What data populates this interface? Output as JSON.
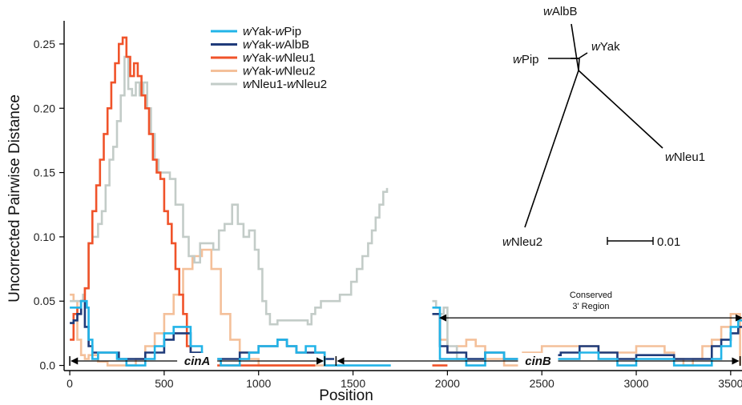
{
  "chart_data": {
    "type": "line",
    "xlabel": "Position",
    "ylabel": "Uncorrected Pairwise Distance",
    "xlim": [
      -30,
      3560
    ],
    "ylim": [
      -0.004,
      0.268
    ],
    "xticks": [
      0,
      500,
      1000,
      1500,
      2000,
      2500,
      3000,
      3500
    ],
    "xtick_labels": [
      "0",
      "500",
      "1000",
      "1500",
      "2000",
      "2500",
      "3000",
      "3500"
    ],
    "yticks": [
      0,
      0.05,
      0.1,
      0.15,
      0.2,
      0.25
    ],
    "ytick_labels": [
      "0.0",
      "0.05",
      "0.10",
      "0.15",
      "0.20",
      "0.25"
    ],
    "legend_position": "top-left",
    "series": [
      {
        "name": "wYak-wNleu2",
        "prefix": "w",
        "mid": "Yak-",
        "suffix": "Nleu2",
        "color": "#f4c09a",
        "points": [
          [
            0,
            0.055
          ],
          [
            20,
            0.05
          ],
          [
            40,
            0.02
          ],
          [
            60,
            0.008
          ],
          [
            80,
            0.005
          ],
          [
            100,
            0.008
          ],
          [
            150,
            0.003
          ],
          [
            200,
            0.0
          ],
          [
            300,
            0.0
          ],
          [
            350,
            0.005
          ],
          [
            400,
            0.015
          ],
          [
            450,
            0.025
          ],
          [
            500,
            0.04
          ],
          [
            550,
            0.055
          ],
          [
            600,
            0.075
          ],
          [
            650,
            0.085
          ],
          [
            700,
            0.09
          ],
          [
            750,
            0.075
          ],
          [
            800,
            0.04
          ],
          [
            850,
            0.02
          ],
          [
            900,
            0.01
          ],
          [
            950,
            0.005
          ],
          [
            1000,
            0.0
          ],
          [
            1100,
            0.0
          ],
          [
            1200,
            0.0
          ],
          [
            1300,
            0.0
          ],
          [
            1420,
            0.0
          ],
          [
            null,
            null
          ],
          [
            1920,
            0.04
          ],
          [
            1960,
            0.02
          ],
          [
            2000,
            0.01
          ],
          [
            2050,
            0.015
          ],
          [
            2100,
            0.02
          ],
          [
            2150,
            0.015
          ],
          [
            2200,
            0.005
          ],
          [
            2300,
            0.0
          ],
          [
            2400,
            0.01
          ],
          [
            2500,
            0.015
          ],
          [
            2600,
            0.015
          ],
          [
            2700,
            0.015
          ],
          [
            2800,
            0.01
          ],
          [
            2900,
            0.01
          ],
          [
            3000,
            0.015
          ],
          [
            3100,
            0.015
          ],
          [
            3150,
            0.01
          ],
          [
            3200,
            0.005
          ],
          [
            3250,
            0.0
          ],
          [
            3300,
            0.005
          ],
          [
            3350,
            0.015
          ],
          [
            3400,
            0.02
          ],
          [
            3450,
            0.03
          ],
          [
            3500,
            0.04
          ],
          [
            3540,
            0.04
          ],
          [
            3550,
            0.0
          ]
        ]
      },
      {
        "name": "wNleu1-wNleu2",
        "prefix": "w",
        "mid": "Nleu1-",
        "suffix": "Nleu2",
        "color": "#c3ccc8",
        "points": [
          [
            0,
            0.05
          ],
          [
            40,
            0.05
          ],
          [
            70,
            0.055
          ],
          [
            80,
            0.06
          ],
          [
            100,
            0.095
          ],
          [
            120,
            0.1
          ],
          [
            150,
            0.11
          ],
          [
            170,
            0.12
          ],
          [
            190,
            0.14
          ],
          [
            210,
            0.16
          ],
          [
            230,
            0.17
          ],
          [
            250,
            0.19
          ],
          [
            270,
            0.21
          ],
          [
            290,
            0.24
          ],
          [
            310,
            0.215
          ],
          [
            330,
            0.21
          ],
          [
            350,
            0.22
          ],
          [
            370,
            0.21
          ],
          [
            390,
            0.22
          ],
          [
            410,
            0.2
          ],
          [
            430,
            0.18
          ],
          [
            450,
            0.16
          ],
          [
            470,
            0.15
          ],
          [
            500,
            0.15
          ],
          [
            530,
            0.145
          ],
          [
            560,
            0.125
          ],
          [
            600,
            0.1
          ],
          [
            630,
            0.085
          ],
          [
            660,
            0.08
          ],
          [
            690,
            0.095
          ],
          [
            720,
            0.095
          ],
          [
            760,
            0.09
          ],
          [
            790,
            0.105
          ],
          [
            820,
            0.11
          ],
          [
            860,
            0.125
          ],
          [
            890,
            0.11
          ],
          [
            920,
            0.1
          ],
          [
            950,
            0.105
          ],
          [
            980,
            0.09
          ],
          [
            1000,
            0.075
          ],
          [
            1020,
            0.05
          ],
          [
            1040,
            0.04
          ],
          [
            1060,
            0.032
          ],
          [
            1100,
            0.035
          ],
          [
            1200,
            0.035
          ],
          [
            1260,
            0.032
          ],
          [
            1280,
            0.04
          ],
          [
            1300,
            0.045
          ],
          [
            1330,
            0.05
          ],
          [
            1360,
            0.05
          ],
          [
            1400,
            0.05
          ],
          [
            1430,
            0.055
          ],
          [
            1460,
            0.055
          ],
          [
            1490,
            0.065
          ],
          [
            1520,
            0.075
          ],
          [
            1550,
            0.085
          ],
          [
            1580,
            0.095
          ],
          [
            1600,
            0.105
          ],
          [
            1620,
            0.115
          ],
          [
            1640,
            0.125
          ],
          [
            1660,
            0.135
          ],
          [
            1680,
            0.138
          ],
          [
            null,
            null
          ],
          [
            1920,
            0.05
          ],
          [
            1940,
            0.045
          ],
          [
            1960,
            0.04
          ],
          [
            1980,
            0.045
          ],
          [
            2000,
            0.015
          ],
          [
            2050,
            0.005
          ],
          [
            2100,
            0.0
          ]
        ]
      },
      {
        "name": "wYak-wNleu1",
        "prefix": "w",
        "mid": "Yak-",
        "suffix": "Nleu1",
        "color": "#f0532a",
        "points": [
          [
            0,
            0.02
          ],
          [
            20,
            0.04
          ],
          [
            40,
            0.045
          ],
          [
            60,
            0.05
          ],
          [
            80,
            0.06
          ],
          [
            100,
            0.095
          ],
          [
            120,
            0.12
          ],
          [
            140,
            0.14
          ],
          [
            160,
            0.16
          ],
          [
            180,
            0.18
          ],
          [
            200,
            0.2
          ],
          [
            220,
            0.22
          ],
          [
            240,
            0.235
          ],
          [
            260,
            0.25
          ],
          [
            280,
            0.255
          ],
          [
            300,
            0.24
          ],
          [
            320,
            0.225
          ],
          [
            340,
            0.235
          ],
          [
            360,
            0.225
          ],
          [
            380,
            0.21
          ],
          [
            400,
            0.2
          ],
          [
            420,
            0.18
          ],
          [
            440,
            0.16
          ],
          [
            460,
            0.15
          ],
          [
            480,
            0.145
          ],
          [
            500,
            0.12
          ],
          [
            520,
            0.11
          ],
          [
            540,
            0.095
          ],
          [
            560,
            0.075
          ],
          [
            580,
            0.055
          ],
          [
            600,
            0.04
          ],
          [
            620,
            0.015
          ],
          [
            640,
            0.005
          ],
          [
            660,
            0.0
          ],
          [
            800,
            0.0
          ],
          [
            1000,
            0.0
          ],
          [
            1200,
            0.0
          ],
          [
            1300,
            0.0
          ],
          [
            null,
            null
          ],
          [
            1920,
            0.0
          ],
          [
            2000,
            0.0
          ]
        ]
      },
      {
        "name": "wYak-wAlbB",
        "prefix": "w",
        "mid": "Yak-",
        "suffix": "AlbB",
        "color": "#1f3b7a",
        "points": [
          [
            0,
            0.033
          ],
          [
            20,
            0.035
          ],
          [
            40,
            0.04
          ],
          [
            60,
            0.05
          ],
          [
            80,
            0.03
          ],
          [
            100,
            0.015
          ],
          [
            120,
            0.01
          ],
          [
            200,
            0.01
          ],
          [
            260,
            0.005
          ],
          [
            300,
            0.005
          ],
          [
            400,
            0.01
          ],
          [
            500,
            0.02
          ],
          [
            550,
            0.025
          ],
          [
            600,
            0.025
          ],
          [
            640,
            0.01
          ],
          [
            700,
            0.005
          ],
          [
            800,
            0.005
          ],
          [
            900,
            0.01
          ],
          [
            950,
            0.01
          ],
          [
            1000,
            0.015
          ],
          [
            1050,
            0.015
          ],
          [
            1100,
            0.02
          ],
          [
            1150,
            0.015
          ],
          [
            1200,
            0.01
          ],
          [
            1250,
            0.01
          ],
          [
            1300,
            0.01
          ],
          [
            1350,
            0.005
          ],
          [
            1400,
            0.005
          ],
          [
            null,
            null
          ],
          [
            1920,
            0.04
          ],
          [
            1960,
            0.015
          ],
          [
            2000,
            0.01
          ],
          [
            2100,
            0.005
          ],
          [
            2200,
            0.01
          ],
          [
            2300,
            0.005
          ],
          [
            2400,
            0.005
          ],
          [
            2500,
            0.008
          ],
          [
            2600,
            0.01
          ],
          [
            2700,
            0.015
          ],
          [
            2800,
            0.01
          ],
          [
            2900,
            0.005
          ],
          [
            3000,
            0.008
          ],
          [
            3100,
            0.008
          ],
          [
            3200,
            0.005
          ],
          [
            3300,
            0.005
          ],
          [
            3400,
            0.015
          ],
          [
            3450,
            0.02
          ],
          [
            3500,
            0.025
          ],
          [
            3540,
            0.03
          ],
          [
            3560,
            0.03
          ]
        ]
      },
      {
        "name": "wYak-wPip",
        "prefix": "w",
        "mid": "Yak-",
        "suffix": "Pip",
        "color": "#22b4e8",
        "points": [
          [
            0,
            0.045
          ],
          [
            30,
            0.045
          ],
          [
            60,
            0.05
          ],
          [
            90,
            0.045
          ],
          [
            100,
            0.02
          ],
          [
            120,
            0.005
          ],
          [
            150,
            0.01
          ],
          [
            200,
            0.01
          ],
          [
            250,
            0.005
          ],
          [
            300,
            0.0
          ],
          [
            350,
            0.0
          ],
          [
            400,
            0.005
          ],
          [
            450,
            0.015
          ],
          [
            500,
            0.025
          ],
          [
            550,
            0.03
          ],
          [
            600,
            0.03
          ],
          [
            640,
            0.015
          ],
          [
            700,
            0.005
          ],
          [
            800,
            0.0
          ],
          [
            850,
            0.0
          ],
          [
            900,
            0.005
          ],
          [
            950,
            0.01
          ],
          [
            1000,
            0.015
          ],
          [
            1050,
            0.015
          ],
          [
            1100,
            0.02
          ],
          [
            1150,
            0.015
          ],
          [
            1200,
            0.01
          ],
          [
            1250,
            0.015
          ],
          [
            1300,
            0.01
          ],
          [
            1350,
            0.0
          ],
          [
            1400,
            0.0
          ],
          [
            1500,
            0.0
          ],
          [
            1600,
            0.0
          ],
          [
            1700,
            0.0
          ],
          [
            null,
            null
          ],
          [
            1920,
            0.045
          ],
          [
            1960,
            0.005
          ],
          [
            2000,
            0.005
          ],
          [
            2100,
            0.0
          ],
          [
            2200,
            0.01
          ],
          [
            2300,
            0.005
          ],
          [
            2400,
            0.0
          ],
          [
            2500,
            0.005
          ],
          [
            2600,
            0.005
          ],
          [
            2700,
            0.01
          ],
          [
            2800,
            0.005
          ],
          [
            2900,
            0.0
          ],
          [
            3000,
            0.005
          ],
          [
            3100,
            0.005
          ],
          [
            3200,
            0.0
          ],
          [
            3300,
            0.0
          ],
          [
            3400,
            0.005
          ],
          [
            3450,
            0.015
          ],
          [
            3500,
            0.03
          ],
          [
            3540,
            0.035
          ],
          [
            3560,
            0.035
          ]
        ]
      }
    ],
    "legend_order": [
      4,
      3,
      2,
      0,
      1
    ],
    "annotations": {
      "cinA": {
        "label": "cinA",
        "x_start": 0,
        "x_end": 1350
      },
      "cinB": {
        "label": "cinB",
        "x_start": 1410,
        "x_end": 3550
      },
      "conserved": {
        "line1": "Conserved",
        "line2": "3' Region",
        "x_start": 1960,
        "x_end": 3560,
        "y": 0.037
      }
    },
    "tree": {
      "tips": [
        {
          "prefix": "w",
          "suffix": "AlbB"
        },
        {
          "prefix": "w",
          "suffix": "Yak"
        },
        {
          "prefix": "w",
          "suffix": "Pip"
        },
        {
          "prefix": "w",
          "suffix": "Nleu1"
        },
        {
          "prefix": "w",
          "suffix": "Nleu2"
        }
      ],
      "scale_label": "0.01"
    }
  }
}
